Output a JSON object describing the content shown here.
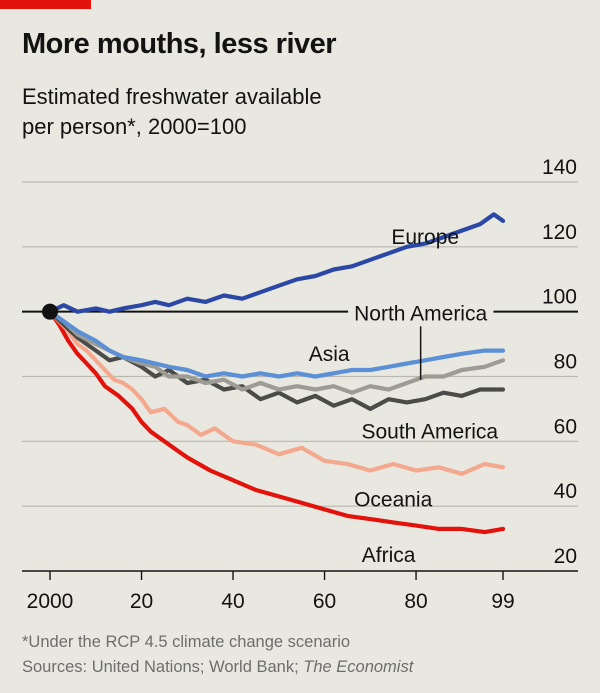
{
  "header": {
    "title": "More mouths, less river",
    "subtitle_line1": "Estimated freshwater available",
    "subtitle_line2": "per person*, 2000=100"
  },
  "footnote": {
    "note": "*Under the RCP 4.5 climate change scenario",
    "sources_prefix": "Sources: United Nations; World Bank; ",
    "sources_italic": "The Economist"
  },
  "colors": {
    "background": "#e9e8e0",
    "gridline": "#b8b7b0",
    "baseline": "#121212",
    "red_tag": "#e3120b",
    "Europe": "#2b48a6",
    "North America": "#9c9c94",
    "Asia": "#5b90d6",
    "South America": "#4b4b48",
    "Oceania": "#f4a88e",
    "Africa": "#e3120b"
  },
  "chart_data": {
    "type": "line",
    "title": "More mouths, less river",
    "subtitle": "Estimated freshwater available per person*, 2000=100",
    "xlabel": "",
    "ylabel": "",
    "xlim": [
      2000,
      2099
    ],
    "ylim": [
      20,
      140
    ],
    "x_tick_values": [
      2000,
      2020,
      2040,
      2060,
      2080,
      2099
    ],
    "x_tick_labels": [
      "2000",
      "20",
      "40",
      "60",
      "80",
      "99"
    ],
    "y_ticks": [
      20,
      40,
      60,
      80,
      100,
      120,
      140
    ],
    "y_tick_labels": [
      "20",
      "40",
      "60",
      "80",
      "100",
      "120",
      "140"
    ],
    "grid": true,
    "start_marker": {
      "x": 2000,
      "y": 100
    },
    "series": [
      {
        "name": "Africa",
        "label": "Africa",
        "x": [
          2000,
          2002,
          2004,
          2006,
          2008,
          2010,
          2012,
          2015,
          2018,
          2020,
          2022,
          2025,
          2028,
          2030,
          2035,
          2040,
          2045,
          2050,
          2055,
          2060,
          2065,
          2070,
          2075,
          2080,
          2085,
          2090,
          2095,
          2099
        ],
        "y": [
          100,
          96,
          91,
          87,
          84,
          81,
          77,
          74,
          70,
          66,
          63,
          60,
          57,
          55,
          51,
          48,
          45,
          43,
          41,
          39,
          37,
          36,
          35,
          34,
          33,
          33,
          32,
          33
        ]
      },
      {
        "name": "Oceania",
        "label": "Oceania",
        "x": [
          2000,
          2002,
          2004,
          2006,
          2008,
          2010,
          2012,
          2014,
          2016,
          2018,
          2020,
          2022,
          2025,
          2028,
          2030,
          2033,
          2036,
          2040,
          2045,
          2050,
          2055,
          2060,
          2065,
          2070,
          2075,
          2080,
          2085,
          2090,
          2095,
          2099
        ],
        "y": [
          100,
          97,
          94,
          90,
          88,
          85,
          82,
          79,
          78,
          76,
          73,
          69,
          70,
          66,
          65,
          62,
          64,
          60,
          59,
          56,
          58,
          54,
          53,
          51,
          53,
          51,
          52,
          50,
          53,
          52
        ]
      },
      {
        "name": "South America",
        "label": "South America",
        "x": [
          2000,
          2003,
          2006,
          2010,
          2013,
          2016,
          2020,
          2023,
          2026,
          2030,
          2034,
          2038,
          2042,
          2046,
          2050,
          2054,
          2058,
          2062,
          2066,
          2070,
          2074,
          2078,
          2082,
          2086,
          2090,
          2094,
          2099
        ],
        "y": [
          100,
          96,
          92,
          88,
          85,
          86,
          83,
          80,
          82,
          78,
          79,
          76,
          77,
          73,
          75,
          72,
          74,
          71,
          73,
          70,
          73,
          72,
          73,
          75,
          74,
          76,
          76
        ]
      },
      {
        "name": "North America",
        "label": "North America",
        "x": [
          2000,
          2003,
          2006,
          2010,
          2013,
          2016,
          2020,
          2023,
          2026,
          2030,
          2034,
          2038,
          2042,
          2046,
          2050,
          2054,
          2058,
          2062,
          2066,
          2070,
          2074,
          2078,
          2082,
          2086,
          2090,
          2095,
          2099
        ],
        "y": [
          100,
          97,
          93,
          90,
          88,
          86,
          84,
          83,
          80,
          80,
          78,
          79,
          76,
          78,
          76,
          77,
          76,
          77,
          75,
          77,
          76,
          78,
          80,
          80,
          82,
          83,
          85
        ]
      },
      {
        "name": "Asia",
        "label": "Asia",
        "x": [
          2000,
          2003,
          2006,
          2010,
          2013,
          2016,
          2020,
          2023,
          2026,
          2030,
          2034,
          2038,
          2042,
          2046,
          2050,
          2054,
          2058,
          2062,
          2066,
          2070,
          2074,
          2078,
          2082,
          2086,
          2090,
          2095,
          2099
        ],
        "y": [
          100,
          97,
          94,
          91,
          88,
          86,
          85,
          84,
          83,
          82,
          80,
          81,
          80,
          81,
          80,
          81,
          80,
          81,
          82,
          82,
          83,
          84,
          85,
          86,
          87,
          88,
          88
        ]
      },
      {
        "name": "Europe",
        "label": "Europe",
        "x": [
          2000,
          2003,
          2006,
          2010,
          2013,
          2016,
          2020,
          2023,
          2026,
          2030,
          2034,
          2038,
          2042,
          2046,
          2050,
          2054,
          2058,
          2062,
          2066,
          2070,
          2074,
          2078,
          2082,
          2086,
          2090,
          2094,
          2097,
          2099
        ],
        "y": [
          100,
          102,
          100,
          101,
          100,
          101,
          102,
          103,
          102,
          104,
          103,
          105,
          104,
          106,
          108,
          110,
          111,
          113,
          114,
          116,
          118,
          120,
          121,
          123,
          125,
          127,
          130,
          128
        ]
      }
    ],
    "labels": [
      {
        "series": "Europe",
        "text": "Europe",
        "x": 2082,
        "y": 123,
        "anchor": "middle"
      },
      {
        "series": "Asia",
        "text": "Asia",
        "x": 2061,
        "y": 87,
        "anchor": "middle"
      },
      {
        "series": "North America",
        "text": "North America",
        "x": 2081,
        "y": 99.5,
        "anchor": "middle",
        "leader_to": {
          "x": 2081,
          "y": 79
        }
      },
      {
        "series": "South America",
        "text": "South America",
        "x": 2083,
        "y": 63,
        "anchor": "middle"
      },
      {
        "series": "Oceania",
        "text": "Oceania",
        "x": 2075,
        "y": 42,
        "anchor": "middle"
      },
      {
        "series": "Africa",
        "text": "Africa",
        "x": 2074,
        "y": 25,
        "anchor": "middle"
      }
    ]
  }
}
